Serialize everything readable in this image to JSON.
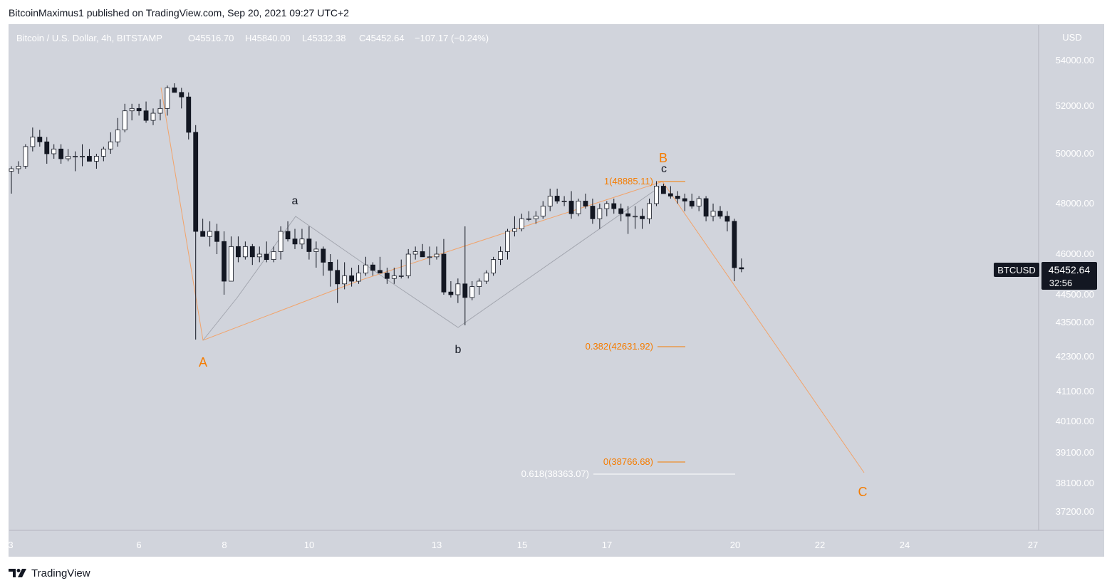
{
  "header": {
    "published_line": "BitcoinMaximus1 published on TradingView.com, Sep 20, 2021 09:27 UTC+2"
  },
  "footer": {
    "brand_label": "TradingView",
    "logo_icon": "tradingview-logo-icon"
  },
  "legend": {
    "symbol_title": "Bitcoin / U.S. Dollar, 4h, BITSTAMP",
    "o_label": "O",
    "o_value": "45516.70",
    "h_label": "H",
    "h_value": "45840.00",
    "l_label": "L",
    "l_value": "45332.38",
    "c_label": "C",
    "c_value": "45452.64",
    "change": "−107.17 (−0.24%)"
  },
  "price_axis": {
    "currency": "USD",
    "ticks": [
      "54000.00",
      "52000.00",
      "50000.00",
      "48000.00",
      "46000.00",
      "44500.00",
      "43500.00",
      "42300.00",
      "41100.00",
      "40100.00",
      "39100.00",
      "38100.00",
      "37200.00"
    ],
    "symbol_tag": "BTCUSD",
    "last_price": "45452.64",
    "countdown": "32:56"
  },
  "time_axis": {
    "ticks": [
      "3",
      "6",
      "8",
      "10",
      "13",
      "15",
      "17",
      "20",
      "22",
      "24",
      "27"
    ]
  },
  "colors": {
    "background": "#d1d4dc",
    "up_candle": "#ffffff",
    "down_candle": "#131722",
    "orange": "#f57c00",
    "fib_white": "#ffffff",
    "wave_gray": "#9598a1",
    "tag_bg": "#131722"
  },
  "chart_data": {
    "type": "candlestick",
    "timeframe": "4h",
    "candles_ohlc": [
      [
        49300,
        49500,
        48400,
        49400
      ],
      [
        49400,
        49700,
        49200,
        49500
      ],
      [
        49500,
        50400,
        49400,
        50300
      ],
      [
        50300,
        51100,
        50100,
        50700
      ],
      [
        50700,
        51000,
        50300,
        50500
      ],
      [
        50500,
        50700,
        49600,
        50000
      ],
      [
        50000,
        50400,
        49800,
        50200
      ],
      [
        50200,
        50400,
        49600,
        49800
      ],
      [
        49800,
        50200,
        49700,
        49900
      ],
      [
        49900,
        50100,
        49300,
        49900
      ],
      [
        49900,
        50400,
        49500,
        49900
      ],
      [
        49900,
        50200,
        49800,
        49700
      ],
      [
        49700,
        50000,
        49400,
        49900
      ],
      [
        49900,
        50300,
        49700,
        50200
      ],
      [
        50200,
        50900,
        50000,
        50500
      ],
      [
        50500,
        51500,
        50300,
        51000
      ],
      [
        51000,
        52100,
        50900,
        51800
      ],
      [
        51800,
        52100,
        51400,
        51900
      ],
      [
        51900,
        52100,
        51600,
        51800
      ],
      [
        51800,
        52200,
        51300,
        51400
      ],
      [
        51400,
        51900,
        51200,
        51700
      ],
      [
        51700,
        52300,
        51400,
        51900
      ],
      [
        51900,
        52900,
        51600,
        52800
      ],
      [
        52800,
        53000,
        52600,
        52600
      ],
      [
        52600,
        52800,
        51900,
        52400
      ],
      [
        52400,
        52600,
        50600,
        50900
      ],
      [
        50900,
        51200,
        42900,
        46900
      ],
      [
        46900,
        47400,
        46700,
        46700
      ],
      [
        46700,
        47300,
        46300,
        46900
      ],
      [
        46900,
        47200,
        46000,
        46500
      ],
      [
        46500,
        46900,
        44500,
        45000
      ],
      [
        45000,
        46700,
        45000,
        46300
      ],
      [
        46300,
        46700,
        45700,
        45900
      ],
      [
        45900,
        46500,
        45800,
        46300
      ],
      [
        46300,
        46400,
        45600,
        45900
      ],
      [
        45900,
        46300,
        45700,
        46000
      ],
      [
        46000,
        46500,
        45700,
        45800
      ],
      [
        45800,
        46300,
        45700,
        46100
      ],
      [
        46100,
        47100,
        45800,
        46900
      ],
      [
        46900,
        47300,
        46500,
        46600
      ],
      [
        46600,
        47000,
        46200,
        46400
      ],
      [
        46400,
        47000,
        46200,
        46600
      ],
      [
        46600,
        47100,
        45800,
        46100
      ],
      [
        46100,
        46500,
        45500,
        46200
      ],
      [
        46200,
        46300,
        45200,
        45700
      ],
      [
        45700,
        46000,
        44800,
        45400
      ],
      [
        45400,
        45800,
        44200,
        44900
      ],
      [
        44900,
        45700,
        44700,
        45200
      ],
      [
        45200,
        45500,
        44800,
        45000
      ],
      [
        45000,
        45600,
        44900,
        45300
      ],
      [
        45300,
        45900,
        45200,
        45600
      ],
      [
        45600,
        45700,
        45200,
        45400
      ],
      [
        45400,
        45900,
        45300,
        45300
      ],
      [
        45300,
        45500,
        44900,
        45100
      ],
      [
        45100,
        45500,
        44900,
        45200
      ],
      [
        45200,
        45800,
        45100,
        45200
      ],
      [
        45200,
        46200,
        45100,
        46000
      ],
      [
        46000,
        46300,
        45800,
        46100
      ],
      [
        46100,
        46400,
        45900,
        45900
      ],
      [
        45900,
        46300,
        45600,
        45900
      ],
      [
        45900,
        46300,
        45800,
        46000
      ],
      [
        46000,
        46600,
        44500,
        44600
      ],
      [
        44600,
        45000,
        44400,
        44500
      ],
      [
        44500,
        45100,
        44200,
        44900
      ],
      [
        44900,
        47100,
        43400,
        44400
      ],
      [
        44400,
        45000,
        44300,
        44800
      ],
      [
        44800,
        45100,
        44500,
        45000
      ],
      [
        45000,
        45400,
        44900,
        45300
      ],
      [
        45300,
        45900,
        45200,
        45800
      ],
      [
        45800,
        46300,
        45600,
        46100
      ],
      [
        46100,
        47000,
        45800,
        46900
      ],
      [
        46900,
        47500,
        46700,
        47000
      ],
      [
        47000,
        47600,
        46900,
        47400
      ],
      [
        47400,
        47700,
        47300,
        47400
      ],
      [
        47400,
        47700,
        47200,
        47500
      ],
      [
        47500,
        48100,
        47400,
        47900
      ],
      [
        47900,
        48600,
        47700,
        48300
      ],
      [
        48300,
        48600,
        48000,
        48100
      ],
      [
        48100,
        48300,
        47900,
        48100
      ],
      [
        48100,
        48500,
        47400,
        47600
      ],
      [
        47600,
        48200,
        47500,
        48100
      ],
      [
        48100,
        48400,
        47800,
        47900
      ],
      [
        47900,
        48200,
        47200,
        47400
      ],
      [
        47400,
        48000,
        47000,
        47800
      ],
      [
        47800,
        48100,
        47500,
        48000
      ],
      [
        48000,
        48200,
        47600,
        47800
      ],
      [
        47800,
        48000,
        47300,
        47600
      ],
      [
        47600,
        47900,
        46800,
        47500
      ],
      [
        47500,
        47900,
        47000,
        47500
      ],
      [
        47500,
        47800,
        47000,
        47400
      ],
      [
        47400,
        48200,
        47200,
        48000
      ],
      [
        48000,
        48900,
        47900,
        48700
      ],
      [
        48700,
        48800,
        48400,
        48400
      ],
      [
        48400,
        48700,
        48200,
        48300
      ],
      [
        48300,
        48500,
        48000,
        48200
      ],
      [
        48200,
        48400,
        47700,
        48100
      ],
      [
        48100,
        48400,
        47800,
        47900
      ],
      [
        47900,
        48300,
        47700,
        48200
      ],
      [
        48200,
        48300,
        47300,
        47500
      ],
      [
        47500,
        48000,
        47300,
        47700
      ],
      [
        47700,
        47900,
        47400,
        47500
      ],
      [
        47500,
        47700,
        46900,
        47300
      ],
      [
        47300,
        47400,
        45000,
        45500
      ],
      [
        45500,
        45840,
        45332,
        45453
      ]
    ],
    "wave_labels": [
      {
        "label": "A",
        "price": 42900,
        "color": "#f57c00"
      },
      {
        "label": "a",
        "price": 47500,
        "color": "#131722"
      },
      {
        "label": "b",
        "price": 43400,
        "color": "#131722"
      },
      {
        "label": "B",
        "price": 48885,
        "color": "#f57c00"
      },
      {
        "label": "c",
        "price": 48885,
        "color": "#131722"
      },
      {
        "label": "C",
        "price": 38363,
        "color": "#f57c00"
      }
    ],
    "fib_levels": [
      {
        "label": "1(48885.11)",
        "ratio": 1,
        "price": 48885.11,
        "color": "#f57c00"
      },
      {
        "label": "0.382(42631.92)",
        "ratio": 0.382,
        "price": 42631.92,
        "color": "#f57c00"
      },
      {
        "label": "0(38766.68)",
        "ratio": 0,
        "price": 38766.68,
        "color": "#f57c00"
      },
      {
        "label": "0.618(38363.07)",
        "ratio": 0.618,
        "price": 38363.07,
        "color": "#ffffff"
      }
    ],
    "price_axis_scale": "nonlinear (log-like)",
    "ylim": [
      36800,
      55000
    ]
  }
}
